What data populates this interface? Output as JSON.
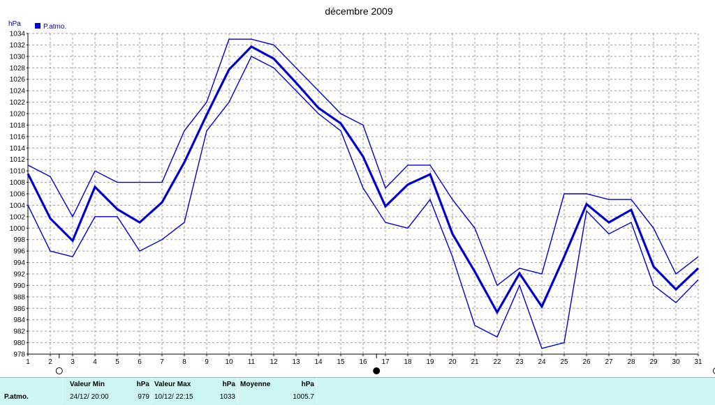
{
  "chart_data": {
    "type": "line",
    "title": "décembre 2009",
    "unit_label": "hPa",
    "legend": [
      {
        "label": "P.atmo.",
        "color": "#0000cc"
      }
    ],
    "ylim": [
      978,
      1034
    ],
    "yticks": [
      978,
      980,
      982,
      984,
      986,
      988,
      990,
      992,
      994,
      996,
      998,
      1000,
      1002,
      1004,
      1006,
      1008,
      1010,
      1012,
      1014,
      1016,
      1018,
      1020,
      1022,
      1024,
      1026,
      1028,
      1030,
      1032,
      1034
    ],
    "x": [
      1,
      2,
      3,
      4,
      5,
      6,
      7,
      8,
      9,
      10,
      11,
      12,
      13,
      14,
      15,
      16,
      17,
      18,
      19,
      20,
      21,
      22,
      23,
      24,
      25,
      26,
      27,
      28,
      29,
      30,
      31
    ],
    "grid": true,
    "series": [
      {
        "values": [
          1011,
          1009,
          1002,
          1010,
          1008,
          1008,
          1008,
          1017,
          1022,
          1033,
          1033,
          1032,
          1028,
          1024,
          1020,
          1018,
          1007,
          1011,
          1011,
          1005,
          1000,
          990,
          993,
          992,
          1006,
          1006,
          1005,
          1005,
          1000,
          992,
          995
        ]
      },
      {
        "values": [
          1009.5,
          1001.7,
          997.8,
          1007.2,
          1003.3,
          1001,
          1004.5,
          1011.5,
          1019.8,
          1027.7,
          1031.7,
          1029.6,
          1025.4,
          1021,
          1018.3,
          1012.5,
          1003.8,
          1007.6,
          1009.4,
          999,
          992.4,
          985.3,
          992.1,
          986.3,
          995,
          1004.2,
          1001,
          1003.2,
          993.3,
          989.3,
          993
        ]
      },
      {
        "values": [
          1004,
          996,
          995,
          1002,
          1002,
          996,
          998,
          1001,
          1017,
          1022,
          1030,
          1028,
          1024,
          1020,
          1017,
          1007,
          1001,
          1000,
          1005,
          995,
          983,
          981,
          990,
          979,
          980,
          1003,
          999,
          1001,
          990,
          987,
          991
        ]
      }
    ]
  },
  "stats": {
    "row_label": "P.atmo.",
    "min_header": "Valeur Min",
    "min_unit": "hPa",
    "min_date": "24/12/  20:00",
    "min_value": "979",
    "max_header": "Valeur Max",
    "max_unit": "hPa",
    "max_date": "10/12/  22:15",
    "max_value": "1033",
    "avg_header": "Moyenne",
    "avg_unit": "hPa",
    "avg_value": "1005.7"
  }
}
